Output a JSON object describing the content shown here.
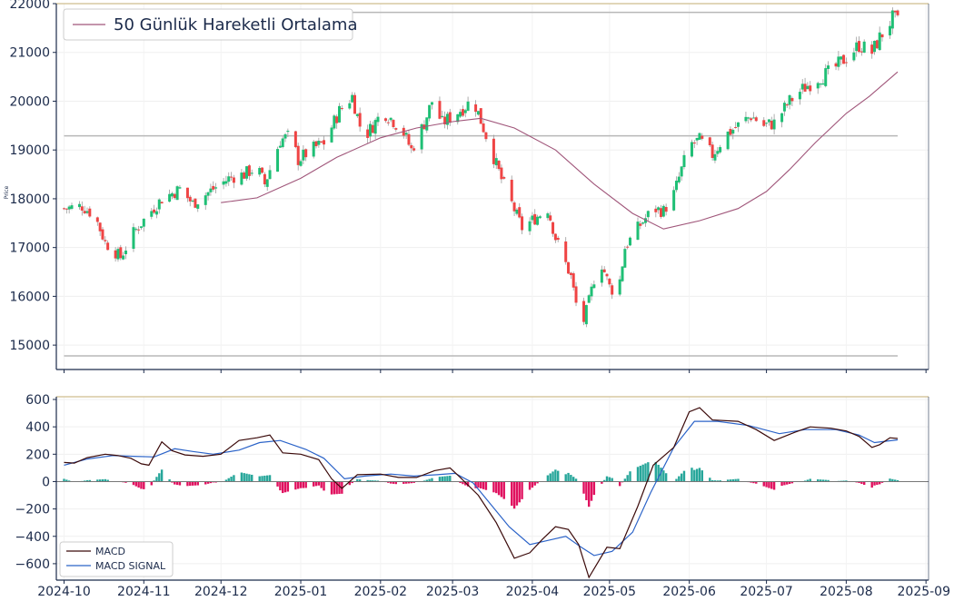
{
  "colors": {
    "up": "#26a69a",
    "up_bright": "#1fbf75",
    "down": "#ef4444",
    "hist_pos": "#26a69a",
    "hist_neg": "#e0115f",
    "macd": "#3b0a0a",
    "signal": "#2b63c8",
    "sma": "#a0567a",
    "hline": "#b8b8b8",
    "topline": "#d7c8a0",
    "axis": "#1b2a4a"
  },
  "chart_data": [
    {
      "type": "candlestick",
      "ylabel": "Price",
      "ylim": [
        14500,
        22000
      ],
      "yticks": [
        15000,
        16000,
        17000,
        18000,
        19000,
        20000,
        21000,
        22000
      ],
      "x_range": [
        "2024-09-28",
        "2025-09-02"
      ],
      "grid": true,
      "legend": {
        "position": "top-left",
        "entries": [
          "50 Günlük Hareketli Ortalama"
        ]
      },
      "horizontal_lines": [
        14780,
        19290,
        21820
      ],
      "anchors": [
        [
          "2024-10-01",
          17800
        ],
        [
          "2024-10-08",
          17850
        ],
        [
          "2024-10-13",
          17650
        ],
        [
          "2024-10-17",
          17100
        ],
        [
          "2024-10-23",
          16800
        ],
        [
          "2024-10-28",
          17300
        ],
        [
          "2024-11-03",
          17700
        ],
        [
          "2024-11-08",
          18000
        ],
        [
          "2024-11-15",
          18200
        ],
        [
          "2024-11-20",
          17900
        ],
        [
          "2024-11-28",
          18200
        ],
        [
          "2024-12-05",
          18450
        ],
        [
          "2024-12-10",
          18500
        ],
        [
          "2024-12-15",
          18650
        ],
        [
          "2024-12-18",
          18300
        ],
        [
          "2024-12-24",
          19200
        ],
        [
          "2024-12-28",
          19300
        ],
        [
          "2024-12-31",
          18800
        ],
        [
          "2025-01-05",
          19000
        ],
        [
          "2025-01-10",
          19150
        ],
        [
          "2025-01-16",
          19800
        ],
        [
          "2025-01-21",
          20100
        ],
        [
          "2025-01-24",
          19500
        ],
        [
          "2025-01-27",
          19350
        ],
        [
          "2025-02-02",
          19800
        ],
        [
          "2025-02-06",
          19600
        ],
        [
          "2025-02-10",
          19350
        ],
        [
          "2025-02-13",
          19000
        ],
        [
          "2025-02-18",
          19550
        ],
        [
          "2025-02-21",
          20000
        ],
        [
          "2025-02-25",
          19550
        ],
        [
          "2025-03-01",
          19700
        ],
        [
          "2025-03-06",
          19900
        ],
        [
          "2025-03-09",
          20050
        ],
        [
          "2025-03-12",
          19600
        ],
        [
          "2025-03-16",
          19000
        ],
        [
          "2025-03-20",
          18400
        ],
        [
          "2025-03-24",
          17900
        ],
        [
          "2025-03-28",
          17400
        ],
        [
          "2025-04-02",
          17600
        ],
        [
          "2025-04-07",
          17800
        ],
        [
          "2025-04-10",
          17200
        ],
        [
          "2025-04-16",
          16400
        ],
        [
          "2025-04-20",
          15300
        ],
        [
          "2025-04-23",
          15900
        ],
        [
          "2025-04-27",
          16800
        ],
        [
          "2025-05-01",
          16200
        ],
        [
          "2025-05-04",
          16000
        ],
        [
          "2025-05-07",
          17000
        ],
        [
          "2025-05-12",
          17400
        ],
        [
          "2025-05-18",
          17800
        ],
        [
          "2025-05-22",
          17750
        ],
        [
          "2025-05-26",
          18100
        ],
        [
          "2025-06-01",
          19100
        ],
        [
          "2025-06-05",
          19200
        ],
        [
          "2025-06-10",
          18900
        ],
        [
          "2025-06-15",
          19300
        ],
        [
          "2025-06-20",
          19500
        ],
        [
          "2025-06-25",
          19700
        ],
        [
          "2025-06-30",
          19500
        ],
        [
          "2025-07-04",
          19550
        ],
        [
          "2025-07-10",
          20000
        ],
        [
          "2025-07-14",
          20200
        ],
        [
          "2025-07-20",
          20450
        ],
        [
          "2025-07-26",
          20600
        ],
        [
          "2025-08-01",
          20900
        ],
        [
          "2025-08-06",
          21150
        ],
        [
          "2025-08-11",
          21000
        ],
        [
          "2025-08-14",
          21300
        ],
        [
          "2025-08-19",
          21700
        ],
        [
          "2025-08-21",
          21620
        ]
      ],
      "sma": [
        [
          "2024-12-01",
          17920
        ],
        [
          "2024-12-15",
          18020
        ],
        [
          "2025-01-01",
          18420
        ],
        [
          "2025-01-15",
          18850
        ],
        [
          "2025-02-01",
          19250
        ],
        [
          "2025-02-15",
          19450
        ],
        [
          "2025-03-01",
          19580
        ],
        [
          "2025-03-12",
          19650
        ],
        [
          "2025-03-25",
          19450
        ],
        [
          "2025-04-10",
          19000
        ],
        [
          "2025-04-25",
          18300
        ],
        [
          "2025-05-10",
          17700
        ],
        [
          "2025-05-22",
          17380
        ],
        [
          "2025-06-05",
          17550
        ],
        [
          "2025-06-20",
          17800
        ],
        [
          "2025-07-01",
          18150
        ],
        [
          "2025-07-10",
          18600
        ],
        [
          "2025-07-20",
          19150
        ],
        [
          "2025-08-01",
          19750
        ],
        [
          "2025-08-10",
          20100
        ],
        [
          "2025-08-21",
          20600
        ]
      ]
    },
    {
      "type": "line",
      "ylim": [
        -720,
        620
      ],
      "yticks": [
        -600,
        -400,
        -200,
        0,
        200,
        400,
        600
      ],
      "x_range": [
        "2024-09-28",
        "2025-09-02"
      ],
      "xticks": [
        "2024-10",
        "2024-11",
        "2024-12",
        "2025-01",
        "2025-02",
        "2025-03",
        "2025-04",
        "2025-05",
        "2025-06",
        "2025-07",
        "2025-08",
        "2025-09"
      ],
      "grid": true,
      "legend": {
        "position": "bottom-left"
      },
      "series": [
        {
          "name": "MACD",
          "points": [
            [
              "2024-10-01",
              140
            ],
            [
              "2024-10-05",
              135
            ],
            [
              "2024-10-10",
              175
            ],
            [
              "2024-10-17",
              200
            ],
            [
              "2024-10-22",
              190
            ],
            [
              "2024-10-27",
              170
            ],
            [
              "2024-10-31",
              130
            ],
            [
              "2024-11-03",
              120
            ],
            [
              "2024-11-08",
              290
            ],
            [
              "2024-11-12",
              225
            ],
            [
              "2024-11-17",
              195
            ],
            [
              "2024-11-24",
              185
            ],
            [
              "2024-12-01",
              200
            ],
            [
              "2024-12-08",
              300
            ],
            [
              "2024-12-15",
              320
            ],
            [
              "2024-12-20",
              340
            ],
            [
              "2024-12-25",
              210
            ],
            [
              "2025-01-01",
              200
            ],
            [
              "2025-01-08",
              160
            ],
            [
              "2025-01-13",
              20
            ],
            [
              "2025-01-17",
              -50
            ],
            [
              "2025-01-23",
              50
            ],
            [
              "2025-02-01",
              55
            ],
            [
              "2025-02-08",
              30
            ],
            [
              "2025-02-15",
              30
            ],
            [
              "2025-02-22",
              80
            ],
            [
              "2025-02-28",
              100
            ],
            [
              "2025-03-04",
              30
            ],
            [
              "2025-03-11",
              -100
            ],
            [
              "2025-03-18",
              -300
            ],
            [
              "2025-03-25",
              -560
            ],
            [
              "2025-03-31",
              -520
            ],
            [
              "2025-04-05",
              -420
            ],
            [
              "2025-04-10",
              -330
            ],
            [
              "2025-04-15",
              -350
            ],
            [
              "2025-04-19",
              -460
            ],
            [
              "2025-04-23",
              -700
            ],
            [
              "2025-04-30",
              -480
            ],
            [
              "2025-05-05",
              -490
            ],
            [
              "2025-05-12",
              -180
            ],
            [
              "2025-05-18",
              120
            ],
            [
              "2025-05-26",
              250
            ],
            [
              "2025-06-01",
              510
            ],
            [
              "2025-06-05",
              540
            ],
            [
              "2025-06-10",
              450
            ],
            [
              "2025-06-20",
              440
            ],
            [
              "2025-06-27",
              380
            ],
            [
              "2025-07-04",
              300
            ],
            [
              "2025-07-12",
              360
            ],
            [
              "2025-07-18",
              400
            ],
            [
              "2025-07-26",
              390
            ],
            [
              "2025-08-01",
              370
            ],
            [
              "2025-08-06",
              330
            ],
            [
              "2025-08-11",
              250
            ],
            [
              "2025-08-14",
              270
            ],
            [
              "2025-08-18",
              320
            ],
            [
              "2025-08-21",
              315
            ]
          ]
        },
        {
          "name": "MACD SIGNAL",
          "points": [
            [
              "2024-10-01",
              120
            ],
            [
              "2024-10-10",
              165
            ],
            [
              "2024-10-20",
              190
            ],
            [
              "2024-10-28",
              185
            ],
            [
              "2024-11-05",
              180
            ],
            [
              "2024-11-13",
              240
            ],
            [
              "2024-11-20",
              220
            ],
            [
              "2024-11-28",
              200
            ],
            [
              "2024-12-08",
              230
            ],
            [
              "2024-12-16",
              285
            ],
            [
              "2024-12-24",
              300
            ],
            [
              "2025-01-03",
              235
            ],
            [
              "2025-01-10",
              170
            ],
            [
              "2025-01-18",
              20
            ],
            [
              "2025-01-26",
              40
            ],
            [
              "2025-02-05",
              55
            ],
            [
              "2025-02-14",
              40
            ],
            [
              "2025-02-23",
              50
            ],
            [
              "2025-03-02",
              60
            ],
            [
              "2025-03-09",
              -10
            ],
            [
              "2025-03-16",
              -170
            ],
            [
              "2025-03-23",
              -330
            ],
            [
              "2025-03-31",
              -460
            ],
            [
              "2025-04-07",
              -430
            ],
            [
              "2025-04-14",
              -400
            ],
            [
              "2025-04-20",
              -480
            ],
            [
              "2025-04-25",
              -540
            ],
            [
              "2025-05-02",
              -510
            ],
            [
              "2025-05-10",
              -370
            ],
            [
              "2025-05-17",
              -80
            ],
            [
              "2025-05-26",
              250
            ],
            [
              "2025-06-03",
              440
            ],
            [
              "2025-06-12",
              440
            ],
            [
              "2025-06-24",
              410
            ],
            [
              "2025-07-06",
              350
            ],
            [
              "2025-07-16",
              380
            ],
            [
              "2025-07-28",
              380
            ],
            [
              "2025-08-06",
              340
            ],
            [
              "2025-08-12",
              285
            ],
            [
              "2025-08-21",
              305
            ]
          ]
        }
      ]
    }
  ]
}
